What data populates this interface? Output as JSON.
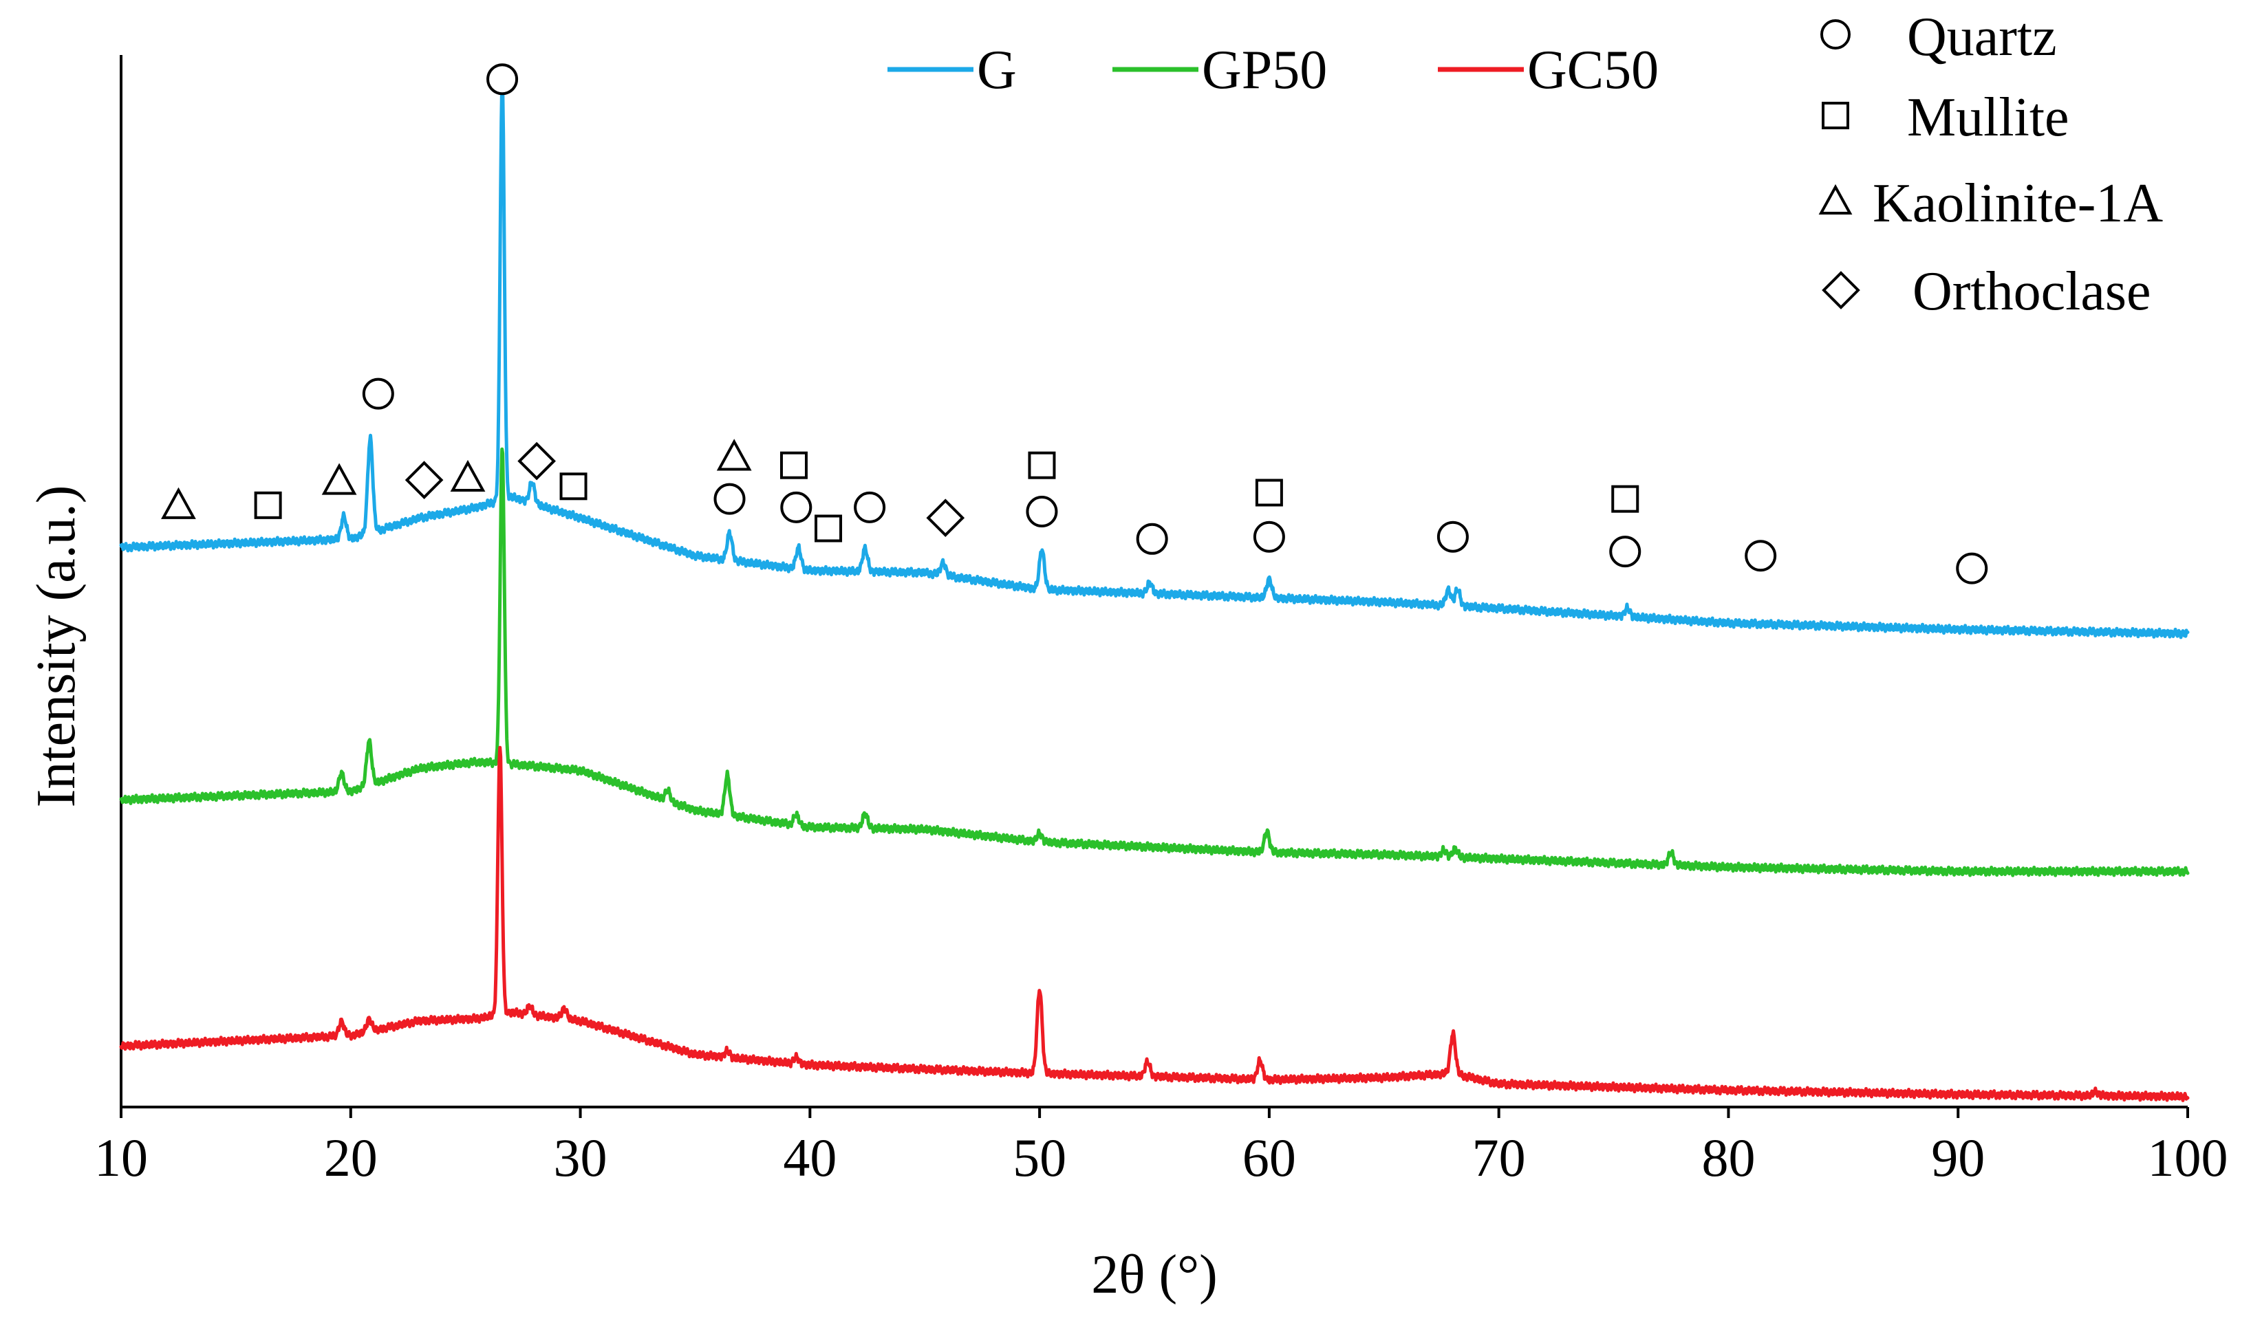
{
  "chart_data": {
    "type": "line",
    "title": "",
    "xlabel": "2θ (°)",
    "ylabel": "Intensity (a.u.)",
    "xlim": [
      10,
      100
    ],
    "xticks": [
      10,
      20,
      30,
      40,
      50,
      60,
      70,
      80,
      90,
      100
    ],
    "xtick_labels": [
      "10",
      "20",
      "30",
      "40",
      "50",
      "60",
      "70",
      "80",
      "90",
      "100"
    ],
    "ylim": [
      0,
      100
    ],
    "grid": false,
    "legend_position": "top",
    "series": [
      {
        "name": "G",
        "color": "#1CA9E8",
        "baseline": [
          [
            10,
            53.2
          ],
          [
            20,
            54.0
          ],
          [
            23,
            56.0
          ],
          [
            25.5,
            57.0
          ],
          [
            27,
            58.0
          ],
          [
            30,
            56.0
          ],
          [
            35,
            52.4
          ],
          [
            40,
            51.0
          ],
          [
            45,
            50.8
          ],
          [
            50,
            49.2
          ],
          [
            60,
            48.4
          ],
          [
            65,
            48.0
          ],
          [
            70,
            47.4
          ],
          [
            80,
            46.0
          ],
          [
            90,
            45.4
          ],
          [
            100,
            45.0
          ]
        ],
        "peaks": [
          [
            19.7,
            2.2
          ],
          [
            20.85,
            9.0
          ],
          [
            26.6,
            40.0
          ],
          [
            27.9,
            2.0
          ],
          [
            36.5,
            2.6
          ],
          [
            39.5,
            2.0
          ],
          [
            42.4,
            2.2
          ],
          [
            45.8,
            1.2
          ],
          [
            50.1,
            3.8
          ],
          [
            54.8,
            1.0
          ],
          [
            60.0,
            1.8
          ],
          [
            67.8,
            1.5
          ],
          [
            68.2,
            1.6
          ],
          [
            75.6,
            0.8
          ]
        ]
      },
      {
        "name": "GP50",
        "color": "#2BC02B",
        "baseline": [
          [
            10,
            29.2
          ],
          [
            20,
            30.0
          ],
          [
            23,
            32.2
          ],
          [
            25.5,
            32.8
          ],
          [
            27,
            32.6
          ],
          [
            30,
            32.0
          ],
          [
            35,
            28.2
          ],
          [
            40,
            26.6
          ],
          [
            45,
            26.4
          ],
          [
            50,
            25.2
          ],
          [
            60,
            24.2
          ],
          [
            65,
            24.0
          ],
          [
            70,
            23.6
          ],
          [
            80,
            22.8
          ],
          [
            90,
            22.4
          ],
          [
            100,
            22.4
          ]
        ],
        "peaks": [
          [
            19.6,
            1.8
          ],
          [
            20.8,
            4.2
          ],
          [
            26.6,
            30.0
          ],
          [
            33.8,
            1.0
          ],
          [
            36.4,
            3.8
          ],
          [
            39.4,
            1.0
          ],
          [
            42.4,
            1.4
          ],
          [
            50.0,
            0.8
          ],
          [
            59.9,
            2.0
          ],
          [
            67.6,
            0.6
          ],
          [
            68.1,
            0.8
          ],
          [
            77.5,
            1.2
          ]
        ]
      },
      {
        "name": "GC50",
        "color": "#EE1C24",
        "baseline": [
          [
            10,
            5.8
          ],
          [
            20,
            6.8
          ],
          [
            23,
            8.2
          ],
          [
            25.5,
            8.4
          ],
          [
            27,
            9.0
          ],
          [
            30,
            8.2
          ],
          [
            35,
            5.0
          ],
          [
            40,
            4.0
          ],
          [
            45,
            3.6
          ],
          [
            50,
            3.2
          ],
          [
            60,
            2.6
          ],
          [
            65,
            2.8
          ],
          [
            68,
            3.2
          ],
          [
            70,
            2.2
          ],
          [
            80,
            1.6
          ],
          [
            90,
            1.2
          ],
          [
            100,
            1.0
          ]
        ],
        "peaks": [
          [
            19.6,
            1.4
          ],
          [
            20.8,
            1.2
          ],
          [
            26.5,
            25.5
          ],
          [
            27.8,
            0.8
          ],
          [
            29.3,
            1.0
          ],
          [
            36.4,
            0.6
          ],
          [
            39.4,
            0.6
          ],
          [
            50.0,
            8.0
          ],
          [
            54.7,
            1.4
          ],
          [
            59.6,
            1.8
          ],
          [
            68.0,
            3.8
          ],
          [
            96.0,
            0.4
          ]
        ]
      }
    ],
    "phase_legend": [
      {
        "symbol": "circle",
        "name": "Quartz"
      },
      {
        "symbol": "square",
        "name": "Mullite"
      },
      {
        "symbol": "triangle",
        "name": "Kaolinite-1A"
      },
      {
        "symbol": "diamond",
        "name": "Orthoclase"
      }
    ],
    "phase_markers": [
      {
        "symbol": "triangle",
        "x": 12.5,
        "y": 57.2
      },
      {
        "symbol": "square",
        "x": 16.4,
        "y": 57.2
      },
      {
        "symbol": "triangle",
        "x": 19.5,
        "y": 59.5
      },
      {
        "symbol": "circle",
        "x": 21.2,
        "y": 67.8
      },
      {
        "symbol": "diamond",
        "x": 23.2,
        "y": 59.6
      },
      {
        "symbol": "triangle",
        "x": 25.1,
        "y": 59.8
      },
      {
        "symbol": "circle",
        "x": 26.6,
        "y": 97.7
      },
      {
        "symbol": "diamond",
        "x": 28.1,
        "y": 61.4
      },
      {
        "symbol": "square",
        "x": 29.7,
        "y": 59.0
      },
      {
        "symbol": "triangle",
        "x": 36.7,
        "y": 61.8
      },
      {
        "symbol": "circle",
        "x": 36.5,
        "y": 57.8
      },
      {
        "symbol": "square",
        "x": 39.3,
        "y": 61.0
      },
      {
        "symbol": "circle",
        "x": 39.4,
        "y": 57.0
      },
      {
        "symbol": "square",
        "x": 40.8,
        "y": 55.0
      },
      {
        "symbol": "circle",
        "x": 42.6,
        "y": 57.0
      },
      {
        "symbol": "diamond",
        "x": 45.9,
        "y": 56.0
      },
      {
        "symbol": "square",
        "x": 50.1,
        "y": 61.0
      },
      {
        "symbol": "circle",
        "x": 50.1,
        "y": 56.6
      },
      {
        "symbol": "circle",
        "x": 54.9,
        "y": 54.0
      },
      {
        "symbol": "square",
        "x": 60.0,
        "y": 58.4
      },
      {
        "symbol": "circle",
        "x": 60.0,
        "y": 54.2
      },
      {
        "symbol": "circle",
        "x": 68.0,
        "y": 54.2
      },
      {
        "symbol": "square",
        "x": 75.5,
        "y": 57.8
      },
      {
        "symbol": "circle",
        "x": 75.5,
        "y": 52.8
      },
      {
        "symbol": "circle",
        "x": 81.4,
        "y": 52.4
      },
      {
        "symbol": "circle",
        "x": 90.6,
        "y": 51.2
      }
    ]
  }
}
